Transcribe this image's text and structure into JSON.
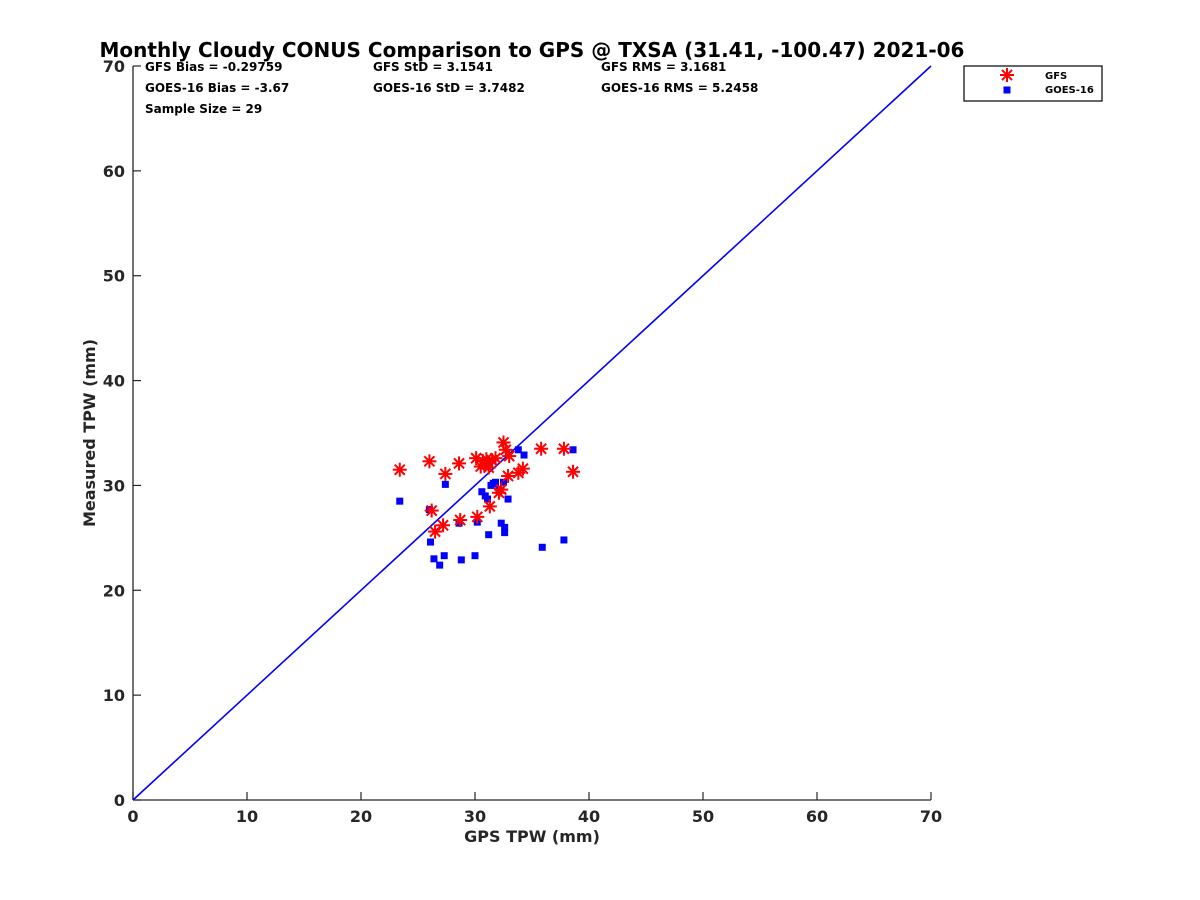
{
  "chart_data": {
    "type": "scatter",
    "title": "Monthly Cloudy CONUS Comparison to GPS @ TXSA (31.41, -100.47) 2021-06",
    "xlabel": "GPS TPW (mm)",
    "ylabel": "Measured TPW (mm)",
    "xlim": [
      0,
      70
    ],
    "ylim": [
      0,
      70
    ],
    "xticks": [
      0,
      10,
      20,
      30,
      40,
      50,
      60,
      70
    ],
    "yticks": [
      0,
      10,
      20,
      30,
      40,
      50,
      60,
      70
    ],
    "grid": false,
    "legend_position": "top-right",
    "stats": [
      "GFS Bias = -0.29759",
      "GFS StD = 3.1541",
      "GFS RMS = 3.1681",
      "GOES-16 Bias = -3.67",
      "GOES-16 StD = 3.7482",
      "GOES-16 RMS = 5.2458",
      "Sample Size = 29"
    ],
    "reference_line": {
      "x": [
        0,
        70
      ],
      "y": [
        0,
        70
      ],
      "color": "#0000ff"
    },
    "series": [
      {
        "name": "GFS",
        "marker": "asterisk",
        "color": "#ff0000",
        "x": [
          23.4,
          26.0,
          26.2,
          26.5,
          27.2,
          27.4,
          28.6,
          28.7,
          30.1,
          30.2,
          30.5,
          30.7,
          30.9,
          31.0,
          31.2,
          31.3,
          31.5,
          31.8,
          32.1,
          32.3,
          32.5,
          32.7,
          32.9,
          33.0,
          33.8,
          34.2,
          35.8,
          37.8,
          38.6
        ],
        "y": [
          31.5,
          32.3,
          27.6,
          25.6,
          26.2,
          31.1,
          32.1,
          26.7,
          32.6,
          27.0,
          31.8,
          32.3,
          32.0,
          32.5,
          31.7,
          28.0,
          32.4,
          32.6,
          29.3,
          29.6,
          34.1,
          33.4,
          30.9,
          32.8,
          31.2,
          31.6,
          33.5,
          33.5,
          31.3
        ]
      },
      {
        "name": "GOES-16",
        "marker": "square",
        "color": "#0000ff",
        "x": [
          23.4,
          26.0,
          26.1,
          26.4,
          26.9,
          27.3,
          27.4,
          28.6,
          28.8,
          30.0,
          30.2,
          30.6,
          30.9,
          31.1,
          31.2,
          31.4,
          31.6,
          31.8,
          32.1,
          32.3,
          32.5,
          32.6,
          32.6,
          32.9,
          33.8,
          34.3,
          35.9,
          37.8,
          38.6
        ],
        "y": [
          28.5,
          27.7,
          24.6,
          23.0,
          22.4,
          23.3,
          30.1,
          26.4,
          22.9,
          23.3,
          26.5,
          29.4,
          29.0,
          28.7,
          25.3,
          30.0,
          30.2,
          30.3,
          29.6,
          26.4,
          30.3,
          25.5,
          26.0,
          28.7,
          33.4,
          32.9,
          24.1,
          24.8,
          33.4
        ]
      }
    ]
  }
}
